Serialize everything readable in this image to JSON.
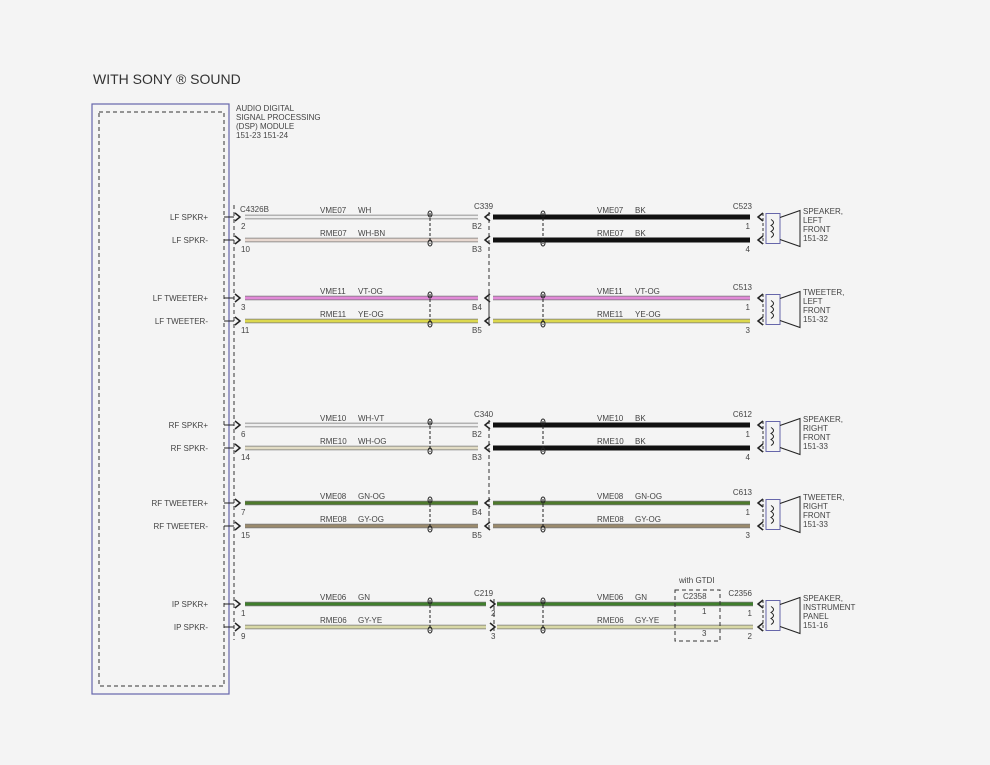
{
  "title": "WITH SONY ® SOUND",
  "module": {
    "lines": [
      "AUDIO DIGITAL",
      "SIGNAL PROCESSING",
      "(DSP) MODULE",
      "151-23   151-24"
    ],
    "connector": "C4326B",
    "outline_color": "#6666aa"
  },
  "groups": [
    {
      "inline_connector": "C339",
      "right_connector": "C523",
      "device": [
        "SPEAKER,",
        "LEFT",
        "FRONT",
        "151-32"
      ],
      "rows": [
        {
          "signal": "LF SPKR+",
          "pin": "2",
          "circuit": "VME07",
          "color_left": "WH",
          "inline_pin": "B2",
          "color_right": "BK",
          "end_pin": "1",
          "hex_left": "#eeeeee",
          "hex_right": "#111111"
        },
        {
          "signal": "LF SPKR-",
          "pin": "10",
          "circuit": "RME07",
          "color_left": "WH-BN",
          "inline_pin": "B3",
          "color_right": "BK",
          "end_pin": "4",
          "hex_left": "#e8d8d0",
          "hex_right": "#111111"
        }
      ]
    },
    {
      "inline_connector": "",
      "right_connector": "C513",
      "device": [
        "TWEETER,",
        "LEFT",
        "FRONT",
        "151-32"
      ],
      "rows": [
        {
          "signal": "LF TWEETER+",
          "pin": "3",
          "circuit": "VME11",
          "color_left": "VT-OG",
          "inline_pin": "B4",
          "color_right": "VT-OG",
          "end_pin": "1",
          "hex_left": "#e28ad8",
          "hex_right": "#e28ad8"
        },
        {
          "signal": "LF TWEETER-",
          "pin": "11",
          "circuit": "RME11",
          "color_left": "YE-OG",
          "inline_pin": "B5",
          "color_right": "YE-OG",
          "end_pin": "3",
          "hex_left": "#dcd84e",
          "hex_right": "#dcd84e"
        }
      ]
    },
    {
      "inline_connector": "C340",
      "right_connector": "C612",
      "device": [
        "SPEAKER,",
        "RIGHT",
        "FRONT",
        "151-33"
      ],
      "rows": [
        {
          "signal": "RF SPKR+",
          "pin": "6",
          "circuit": "VME10",
          "color_left": "WH-VT",
          "inline_pin": "B2",
          "color_right": "BK",
          "end_pin": "1",
          "hex_left": "#eeeeee",
          "hex_right": "#111111"
        },
        {
          "signal": "RF SPKR-",
          "pin": "14",
          "circuit": "RME10",
          "color_left": "WH-OG",
          "inline_pin": "B3",
          "color_right": "BK",
          "end_pin": "4",
          "hex_left": "#e2dcc4",
          "hex_right": "#111111"
        }
      ]
    },
    {
      "inline_connector": "",
      "right_connector": "C613",
      "device": [
        "TWEETER,",
        "RIGHT",
        "FRONT",
        "151-33"
      ],
      "rows": [
        {
          "signal": "RF TWEETER+",
          "pin": "7",
          "circuit": "VME08",
          "color_left": "GN-OG",
          "inline_pin": "B4",
          "color_right": "GN-OG",
          "end_pin": "1",
          "hex_left": "#4e7a2c",
          "hex_right": "#4e7a2c"
        },
        {
          "signal": "RF TWEETER-",
          "pin": "15",
          "circuit": "RME08",
          "color_left": "GY-OG",
          "inline_pin": "B5",
          "color_right": "GY-OG",
          "end_pin": "3",
          "hex_left": "#9a8a6c",
          "hex_right": "#9a8a6c"
        }
      ]
    },
    {
      "inline_connector": "C219",
      "right_connector": "C2356",
      "device": [
        "SPEAKER,",
        "INSTRUMENT",
        "PANEL",
        "151-16"
      ],
      "option": {
        "label": "with GTDI",
        "connector": "C2358",
        "pins": [
          "1",
          "3"
        ]
      },
      "rows": [
        {
          "signal": "IP SPKR+",
          "pin": "1",
          "circuit": "VME06",
          "color_left": "GN",
          "inline_pin": "2",
          "color_right": "GN",
          "end_pin": "1",
          "hex_left": "#3f7e2c",
          "hex_right": "#3f7e2c"
        },
        {
          "signal": "IP SPKR-",
          "pin": "9",
          "circuit": "RME06",
          "color_left": "GY-YE",
          "inline_pin": "3",
          "color_right": "GY-YE",
          "end_pin": "2",
          "hex_left": "#d8d8a6",
          "hex_right": "#d8d8a6"
        }
      ]
    }
  ]
}
